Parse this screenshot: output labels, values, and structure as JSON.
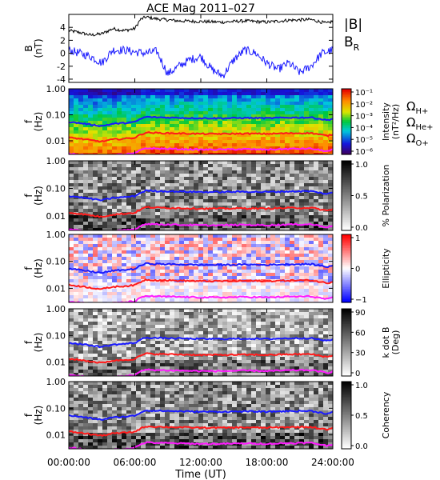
{
  "chart_data": {
    "title": "ACE Mag 2011–027",
    "time_axis": {
      "label": "Time (UT)",
      "range_hours": [
        0,
        24
      ],
      "ticks": [
        {
          "hour": 0,
          "label": "00:00:00"
        },
        {
          "hour": 6,
          "label": "06:00:00"
        },
        {
          "hour": 12,
          "label": "12:00:00"
        },
        {
          "hour": 18,
          "label": "18:00:00"
        },
        {
          "hour": 24,
          "label": "24:00:00"
        }
      ]
    },
    "panels": [
      {
        "type": "line",
        "ylabel": "B",
        "yunit": "(nT)",
        "ylim": [
          -4.5,
          6
        ],
        "yticks": [
          "4",
          "2",
          "0",
          "-2",
          "-4"
        ],
        "ytick_values": [
          4,
          2,
          0,
          -2,
          -4
        ],
        "series": [
          {
            "name": "|B|",
            "color": "#000000",
            "x": [
              0,
              1,
              2,
              3,
              4,
              5,
              6,
              6.5,
              7,
              8,
              10,
              12,
              14,
              16,
              18,
              20,
              22,
              23.5,
              24
            ],
            "y": [
              3.5,
              3.2,
              2.8,
              3.0,
              3.8,
              3.5,
              3.8,
              5.2,
              5.6,
              5.3,
              5.0,
              4.9,
              4.8,
              5.0,
              4.8,
              5.1,
              5.2,
              4.6,
              5.0
            ]
          },
          {
            "name": "B",
            "subscript": "R",
            "color": "#1a1aff",
            "x": [
              0,
              1,
              2,
              3,
              4,
              5,
              6,
              7,
              8,
              9,
              10,
              11,
              12,
              13,
              14,
              15,
              16,
              17,
              18,
              19,
              20,
              21,
              22,
              23,
              24
            ],
            "y": [
              0.5,
              0.0,
              -0.5,
              -1.5,
              0.5,
              0.5,
              0.2,
              0.0,
              0.3,
              -3.2,
              -2.0,
              -1.0,
              -0.5,
              -2.5,
              -3.5,
              -1.0,
              0.5,
              0.0,
              -1.5,
              -2.5,
              -1.5,
              -3.0,
              -2.0,
              0.0,
              0.5
            ]
          }
        ]
      },
      {
        "type": "heatmap",
        "ylabel": "f",
        "yunit": "(Hz)",
        "ylim": [
          0.003,
          1.0
        ],
        "scale": "log",
        "yticks": [
          "1.00",
          "0.10",
          "0.01"
        ],
        "ytick_values": [
          1.0,
          0.1,
          0.01
        ],
        "colorbar": {
          "label": "Intensity",
          "unit": "(nT²/Hz)",
          "colormap": "rainbow",
          "ticks": [
            "10⁻¹",
            "10⁻²",
            "10⁻³",
            "10⁻⁴",
            "10⁻⁵",
            "10⁻⁶"
          ]
        },
        "overlays": true
      },
      {
        "type": "heatmap",
        "ylabel": "f",
        "yunit": "(Hz)",
        "ylim": [
          0.003,
          1.0
        ],
        "scale": "log",
        "yticks": [
          "1.00",
          "0.10",
          "0.01"
        ],
        "ytick_values": [
          1.0,
          0.1,
          0.01
        ],
        "colorbar": {
          "label": "% Polarization",
          "colormap": "gray_reverse",
          "ticks": [
            "1.0",
            "0.5",
            "0.0"
          ]
        },
        "overlays": true
      },
      {
        "type": "heatmap",
        "ylabel": "f",
        "yunit": "(Hz)",
        "ylim": [
          0.003,
          1.0
        ],
        "scale": "log",
        "yticks": [
          "1.00",
          "0.10",
          "0.01"
        ],
        "ytick_values": [
          1.0,
          0.1,
          0.01
        ],
        "colorbar": {
          "label": "Ellipticity",
          "colormap": "bluewhitered",
          "ticks": [
            "1",
            "0",
            "−1"
          ]
        },
        "overlays": true
      },
      {
        "type": "heatmap",
        "ylabel": "f",
        "yunit": "(Hz)",
        "ylim": [
          0.003,
          1.0
        ],
        "scale": "log",
        "yticks": [
          "1.00",
          "0.10",
          "0.01"
        ],
        "ytick_values": [
          1.0,
          0.1,
          0.01
        ],
        "colorbar": {
          "label": "k dot B",
          "unit": "(Deg)",
          "colormap": "gray_reverse",
          "ticks": [
            "90",
            "60",
            "30",
            "0"
          ]
        },
        "overlays": true
      },
      {
        "type": "heatmap",
        "ylabel": "f",
        "yunit": "(Hz)",
        "ylim": [
          0.003,
          1.0
        ],
        "scale": "log",
        "yticks": [
          "1.00",
          "0.10",
          "0.01"
        ],
        "ytick_values": [
          1.0,
          0.1,
          0.01
        ],
        "colorbar": {
          "label": "Coherency",
          "colormap": "gray_reverse",
          "ticks": [
            "1.0",
            "0.5",
            "0.0"
          ]
        },
        "overlays": true
      }
    ],
    "gyrofrequencies": [
      {
        "name": "Ω",
        "subscript": "H+",
        "color": "#1a1aff",
        "x": [
          0,
          1,
          2,
          3,
          4,
          5,
          6,
          6.5,
          7,
          8,
          10,
          12,
          14,
          16,
          18,
          20,
          22,
          23.5,
          24
        ],
        "f": [
          0.053,
          0.048,
          0.042,
          0.037,
          0.045,
          0.048,
          0.052,
          0.068,
          0.083,
          0.08,
          0.077,
          0.074,
          0.074,
          0.076,
          0.074,
          0.078,
          0.079,
          0.062,
          0.071
        ]
      },
      {
        "name": "Ω",
        "subscript": "He+",
        "color": "#ff1a1a",
        "x": [
          0,
          1,
          2,
          3,
          4,
          5,
          6,
          6.5,
          7,
          8,
          10,
          12,
          14,
          16,
          18,
          20,
          22,
          23.5,
          24
        ],
        "f": [
          0.0133,
          0.012,
          0.0105,
          0.0093,
          0.0113,
          0.012,
          0.013,
          0.017,
          0.0208,
          0.02,
          0.0193,
          0.0185,
          0.0185,
          0.019,
          0.0185,
          0.0195,
          0.0198,
          0.0155,
          0.0178
        ]
      },
      {
        "name": "Ω",
        "subscript": "O+",
        "color": "#ff1aff",
        "x": [
          0,
          1,
          2,
          3,
          4,
          5,
          6,
          6.5,
          7,
          8,
          10,
          12,
          14,
          16,
          18,
          20,
          22,
          23.5,
          24
        ],
        "f": [
          0.0033,
          0.003,
          0.0026,
          0.0023,
          0.0028,
          0.003,
          0.0033,
          0.0043,
          0.0052,
          0.005,
          0.0048,
          0.0046,
          0.0046,
          0.0048,
          0.0046,
          0.0049,
          0.005,
          0.0039,
          0.0045
        ]
      }
    ]
  }
}
